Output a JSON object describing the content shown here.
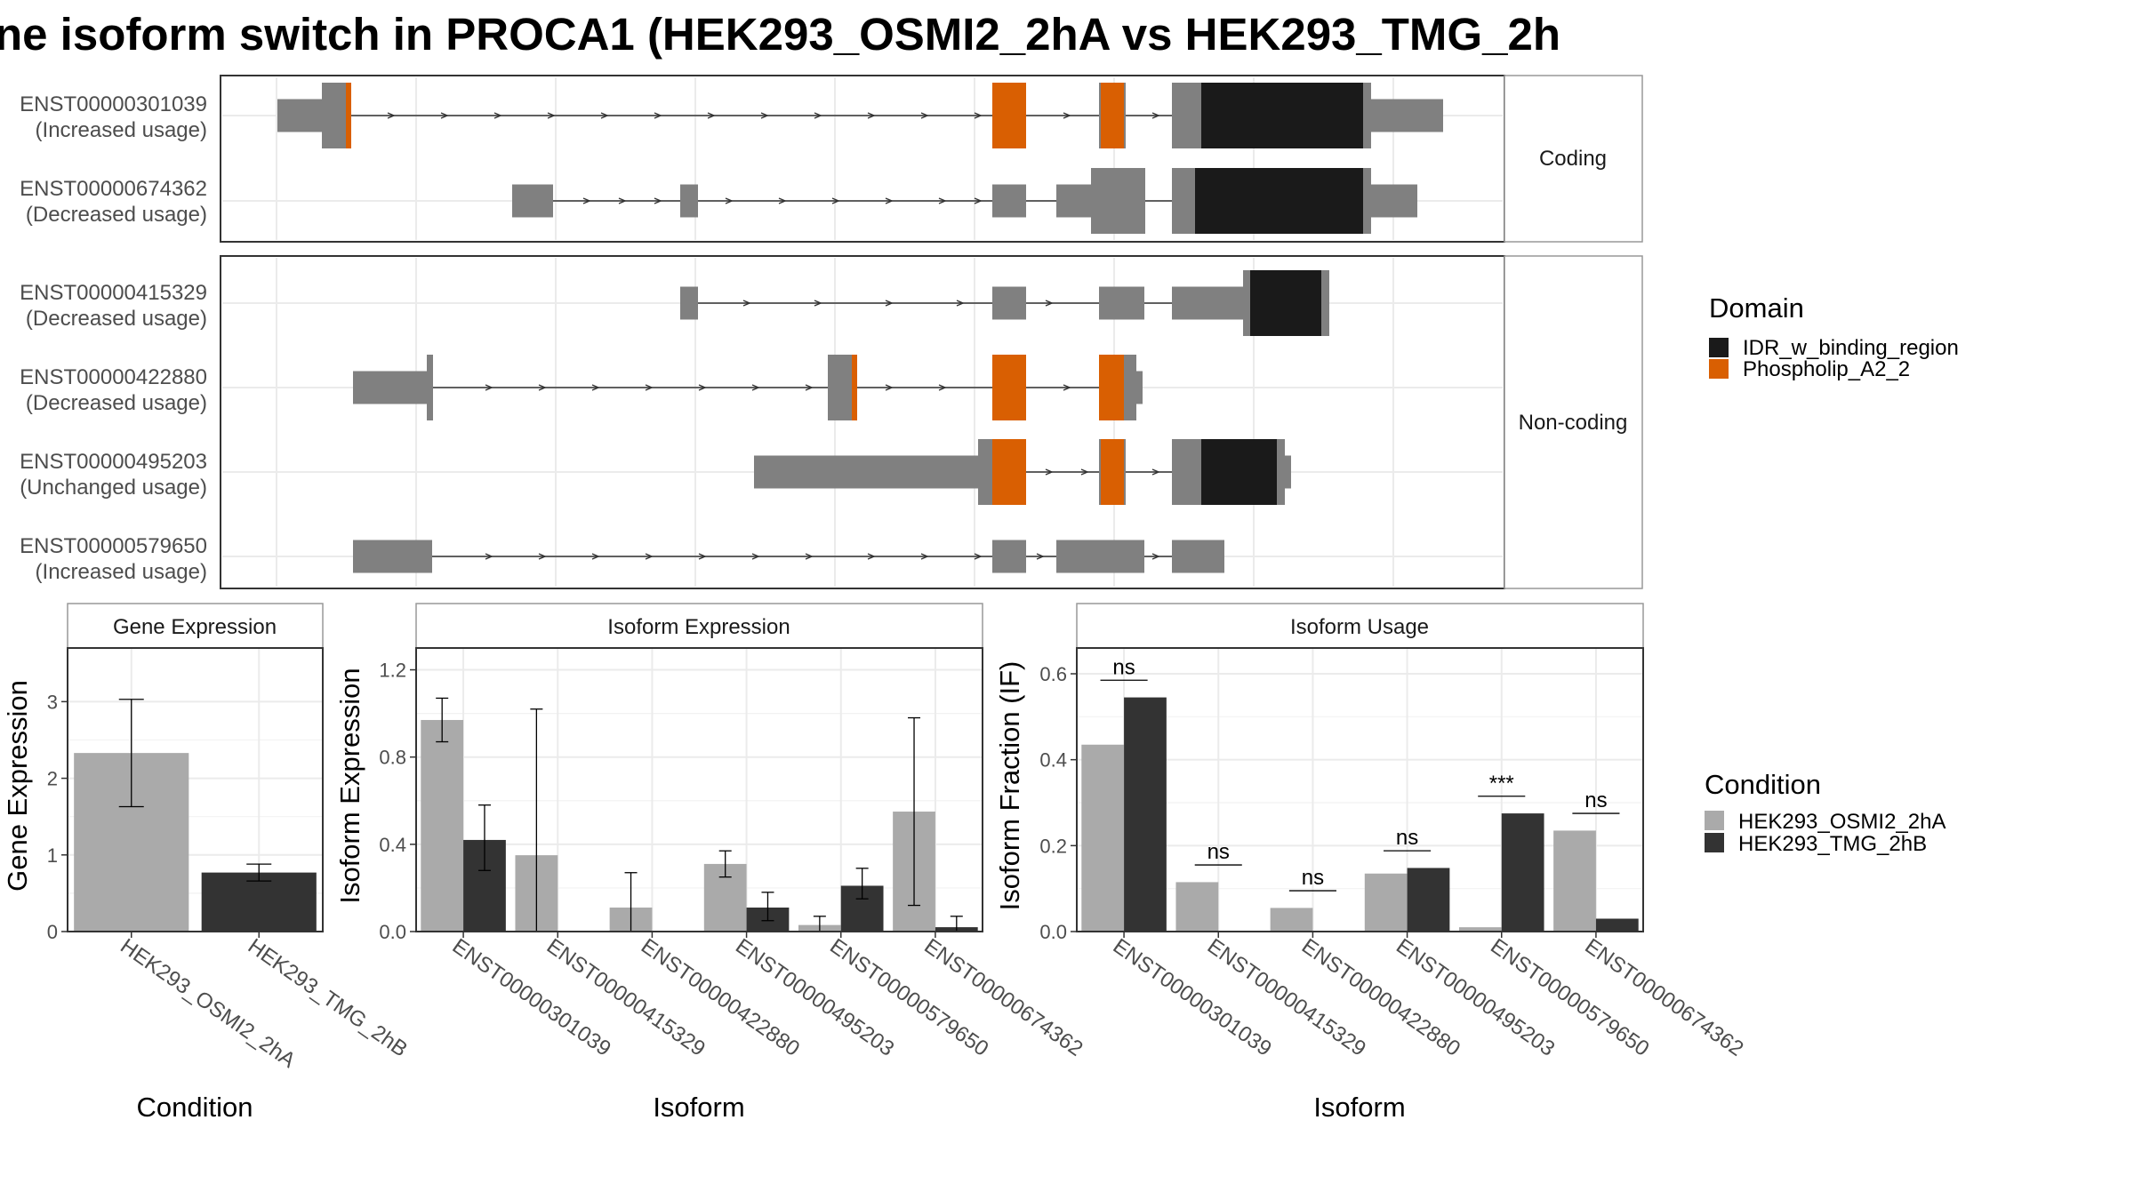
{
  "title": "ne isoform switch in PROCA1 (HEK293_OSMI2_2hA vs HEK293_TMG_2h",
  "colors": {
    "exon": "#808080",
    "idr": "#1a1a1a",
    "phospholip": "#d95f02",
    "cond_a": "#aaaaaa",
    "cond_b": "#333333"
  },
  "structure": {
    "facets": [
      {
        "label": "Coding",
        "transcripts": [
          {
            "id": "ENST00000301039",
            "usage": "(Increased usage)"
          },
          {
            "id": "ENST00000674362",
            "usage": "(Decreased usage)"
          }
        ]
      },
      {
        "label": "Non-coding",
        "transcripts": [
          {
            "id": "ENST00000415329",
            "usage": "(Decreased usage)"
          },
          {
            "id": "ENST00000422880",
            "usage": "(Decreased usage)"
          },
          {
            "id": "ENST00000495203",
            "usage": "(Unchanged usage)"
          },
          {
            "id": "ENST00000579650",
            "usage": "(Increased usage)"
          }
        ]
      }
    ]
  },
  "legend_domain": {
    "title": "Domain",
    "items": [
      {
        "label": "IDR_w_binding_region",
        "color": "#1a1a1a"
      },
      {
        "label": "Phospholip_A2_2",
        "color": "#d95f02"
      }
    ]
  },
  "legend_condition": {
    "title": "Condition",
    "items": [
      {
        "label": "HEK293_OSMI2_2hA",
        "color": "#aaaaaa"
      },
      {
        "label": "HEK293_TMG_2hB",
        "color": "#333333"
      }
    ]
  },
  "chart_data": [
    {
      "type": "bar",
      "title": "Gene Expression",
      "xlabel": "Condition",
      "ylabel": "Gene Expression",
      "ylim": [
        0,
        3.7
      ],
      "yticks": [
        0,
        1,
        2,
        3
      ],
      "categories": [
        "HEK293_OSMI2_2hA",
        "HEK293_TMG_2hB"
      ],
      "values": [
        2.33,
        0.77
      ],
      "error_low": [
        1.63,
        0.66
      ],
      "error_high": [
        3.03,
        0.88
      ]
    },
    {
      "type": "bar",
      "title": "Isoform Expression",
      "xlabel": "Isoform",
      "ylabel": "Isoform Expression",
      "ylim": [
        0,
        1.3
      ],
      "yticks": [
        "0.0",
        "0.4",
        "0.8",
        "1.2"
      ],
      "categories": [
        "ENST00000301039",
        "ENST00000415329",
        "ENST00000422880",
        "ENST00000495203",
        "ENST00000579650",
        "ENST00000674362"
      ],
      "series": [
        {
          "name": "HEK293_OSMI2_2hA",
          "values": [
            0.97,
            0.35,
            0.11,
            0.31,
            0.03,
            0.55
          ],
          "error_low": [
            0.87,
            0.0,
            0.0,
            0.25,
            0.0,
            0.12
          ],
          "error_high": [
            1.07,
            1.02,
            0.27,
            0.37,
            0.07,
            0.98
          ]
        },
        {
          "name": "HEK293_TMG_2hB",
          "values": [
            0.42,
            0.0,
            0.0,
            0.11,
            0.21,
            0.02
          ],
          "error_low": [
            0.28,
            0.0,
            0.0,
            0.05,
            0.15,
            0.0
          ],
          "error_high": [
            0.58,
            0.0,
            0.0,
            0.18,
            0.29,
            0.07
          ]
        }
      ]
    },
    {
      "type": "bar",
      "title": "Isoform Usage",
      "xlabel": "Isoform",
      "ylabel": "Isoform Fraction (IF)",
      "ylim": [
        0,
        0.66
      ],
      "yticks": [
        "0.0",
        "0.2",
        "0.4",
        "0.6"
      ],
      "categories": [
        "ENST00000301039",
        "ENST00000415329",
        "ENST00000422880",
        "ENST00000495203",
        "ENST00000579650",
        "ENST00000674362"
      ],
      "series": [
        {
          "name": "HEK293_OSMI2_2hA",
          "values": [
            0.435,
            0.115,
            0.055,
            0.135,
            0.01,
            0.235
          ]
        },
        {
          "name": "HEK293_TMG_2hB",
          "values": [
            0.545,
            0.0,
            0.0,
            0.148,
            0.275,
            0.03
          ]
        }
      ],
      "significance": [
        "ns",
        "ns",
        "ns",
        "ns",
        "***",
        "ns"
      ]
    }
  ]
}
